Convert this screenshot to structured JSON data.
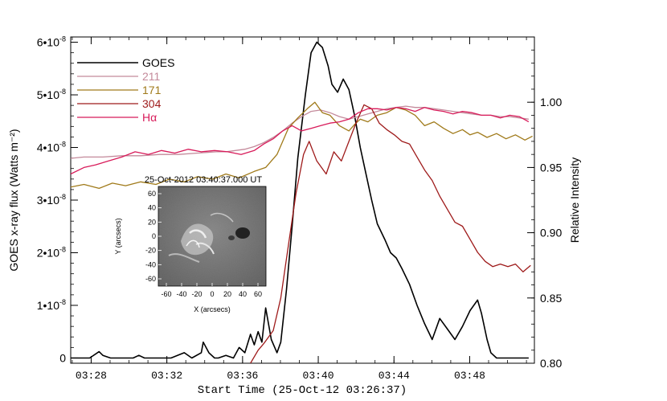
{
  "chart_data": {
    "type": "line",
    "xlabel": "Start Time (25-Oct-12 03:26:37)",
    "ylabel_left": "GOES x-ray flux (Watts m⁻²)",
    "ylabel_right": "Relative Intensity",
    "x_unit": "minutes after 03:26:37",
    "xlim": [
      0.3,
      24.8
    ],
    "ylim_left": [
      -1e-09,
      6.1e-08
    ],
    "ylim_right": [
      0.8,
      1.05
    ],
    "x_ticks": [
      {
        "v": 1.38,
        "label": "03:28"
      },
      {
        "v": 5.38,
        "label": "03:32"
      },
      {
        "v": 9.38,
        "label": "03:36"
      },
      {
        "v": 13.38,
        "label": "03:40"
      },
      {
        "v": 17.38,
        "label": "03:44"
      },
      {
        "v": 21.38,
        "label": "03:48"
      }
    ],
    "y_left_ticks": [
      {
        "v": 0,
        "m": "0",
        "e": ""
      },
      {
        "v": 1e-08,
        "m": "1•10",
        "e": "-8"
      },
      {
        "v": 2e-08,
        "m": "2•10",
        "e": "-8"
      },
      {
        "v": 3e-08,
        "m": "3•10",
        "e": "-8"
      },
      {
        "v": 4e-08,
        "m": "4•10",
        "e": "-8"
      },
      {
        "v": 5e-08,
        "m": "5•10",
        "e": "-8"
      },
      {
        "v": 6e-08,
        "m": "6•10",
        "e": "-8"
      }
    ],
    "y_right_ticks": [
      {
        "v": 0.8,
        "label": "0.80"
      },
      {
        "v": 0.85,
        "label": "0.85"
      },
      {
        "v": 0.9,
        "label": "0.90"
      },
      {
        "v": 0.95,
        "label": "0.95"
      },
      {
        "v": 1.0,
        "label": "1.00"
      }
    ],
    "series": [
      {
        "name": "GOES",
        "axis": "left",
        "color": "#000000",
        "x": [
          0.3,
          1.3,
          1.8,
          2.0,
          2.4,
          3.0,
          3.6,
          3.9,
          4.2,
          4.6,
          4.8,
          5.1,
          5.6,
          6.3,
          6.7,
          7.2,
          7.3,
          7.6,
          7.9,
          8.1,
          8.5,
          8.9,
          9.2,
          9.5,
          9.8,
          10.0,
          10.2,
          10.4,
          10.6,
          10.9,
          11.2,
          11.4,
          11.7,
          12.0,
          12.3,
          12.7,
          13.0,
          13.3,
          13.6,
          13.9,
          14.1,
          14.4,
          14.7,
          15.0,
          15.3,
          15.6,
          15.9,
          16.2,
          16.5,
          16.9,
          17.2,
          17.5,
          17.8,
          18.2,
          18.6,
          19.0,
          19.4,
          19.8,
          20.2,
          20.6,
          21.0,
          21.4,
          21.8,
          22.0,
          22.3,
          22.5,
          22.8,
          23.1,
          23.5,
          24.0,
          24.5
        ],
        "y": [
          0.0,
          0.0,
          1.2e-09,
          5e-10,
          0.0,
          0.0,
          0.0,
          5e-10,
          0.0,
          0.0,
          0.0,
          0.0,
          0.0,
          1e-09,
          0.0,
          1e-09,
          3e-09,
          1e-09,
          0.0,
          0.0,
          5e-10,
          0.0,
          2e-09,
          1e-09,
          4.5e-09,
          2.5e-09,
          5e-09,
          3e-09,
          9.5e-09,
          3.5e-09,
          1e-09,
          3e-09,
          1.3e-08,
          2.5e-08,
          3.8e-08,
          5e-08,
          5.8e-08,
          6e-08,
          5.9e-08,
          5.55e-08,
          5.2e-08,
          5.05e-08,
          5.3e-08,
          5.1e-08,
          4.6e-08,
          4e-08,
          3.5e-08,
          3e-08,
          2.55e-08,
          2.25e-08,
          2e-08,
          1.9e-08,
          1.7e-08,
          1.4e-08,
          1e-08,
          6.5e-09,
          3.5e-09,
          7.5e-09,
          5.5e-09,
          3.5e-09,
          6e-09,
          9e-09,
          1.1e-08,
          8.5e-09,
          3.5e-09,
          1e-09,
          0.0,
          0.0,
          0.0,
          0.0,
          0.0
        ]
      },
      {
        "name": "211",
        "axis": "right",
        "color": "#c48a9b",
        "x": [
          0.3,
          1.0,
          2.0,
          3.0,
          4.0,
          5.0,
          6.0,
          7.0,
          8.0,
          8.5,
          9.0,
          9.5,
          10.0,
          10.5,
          11.0,
          11.5,
          12.0,
          12.5,
          13.0,
          13.5,
          14.0,
          14.5,
          15.0,
          15.5,
          16.0,
          16.5,
          17.0,
          17.5,
          18.0,
          18.5,
          19.0,
          19.5,
          20.0,
          20.5,
          21.0,
          21.5,
          22.0,
          22.5,
          23.0,
          23.5,
          24.0,
          24.5
        ],
        "y": [
          0.957,
          0.958,
          0.958,
          0.959,
          0.959,
          0.96,
          0.96,
          0.961,
          0.962,
          0.962,
          0.963,
          0.964,
          0.966,
          0.969,
          0.973,
          0.978,
          0.984,
          0.989,
          0.993,
          0.994,
          0.992,
          0.989,
          0.987,
          0.989,
          0.991,
          0.993,
          0.995,
          0.996,
          0.997,
          0.996,
          0.996,
          0.995,
          0.994,
          0.993,
          0.992,
          0.991,
          0.99,
          0.99,
          0.989,
          0.989,
          0.988,
          0.987
        ]
      },
      {
        "name": "171",
        "axis": "right",
        "color": "#a07a1a",
        "x": [
          0.3,
          1.0,
          1.8,
          2.5,
          3.2,
          4.0,
          4.8,
          5.5,
          6.3,
          7.0,
          7.8,
          8.5,
          9.2,
          10.0,
          10.6,
          11.2,
          11.8,
          12.3,
          12.8,
          13.2,
          13.6,
          14.0,
          14.5,
          15.0,
          15.3,
          15.6,
          16.0,
          16.5,
          17.0,
          17.5,
          18.0,
          18.5,
          19.0,
          19.5,
          20.0,
          20.5,
          21.0,
          21.4,
          21.8,
          22.3,
          22.8,
          23.3,
          23.8,
          24.3,
          24.7
        ],
        "y": [
          0.935,
          0.937,
          0.934,
          0.938,
          0.936,
          0.939,
          0.937,
          0.941,
          0.939,
          0.943,
          0.941,
          0.945,
          0.942,
          0.947,
          0.95,
          0.96,
          0.98,
          0.988,
          0.995,
          1.0,
          0.992,
          0.99,
          0.982,
          0.978,
          0.983,
          0.987,
          0.985,
          0.99,
          0.992,
          0.996,
          0.994,
          0.99,
          0.982,
          0.985,
          0.98,
          0.976,
          0.979,
          0.975,
          0.977,
          0.973,
          0.976,
          0.972,
          0.975,
          0.971,
          0.974
        ]
      },
      {
        "name": "304",
        "axis": "right",
        "color": "#9e1a1a",
        "x": [
          9.8,
          10.2,
          10.5,
          11.0,
          11.4,
          11.8,
          12.2,
          12.6,
          12.9,
          13.3,
          13.8,
          14.2,
          14.6,
          15.0,
          15.4,
          15.8,
          16.2,
          16.6,
          17.0,
          17.4,
          17.8,
          18.2,
          18.6,
          19.0,
          19.4,
          19.8,
          20.2,
          20.6,
          21.0,
          21.4,
          21.8,
          22.2,
          22.6,
          23.0,
          23.4,
          23.8,
          24.2,
          24.6
        ],
        "y": [
          0.8,
          0.81,
          0.815,
          0.825,
          0.85,
          0.89,
          0.93,
          0.96,
          0.97,
          0.955,
          0.945,
          0.962,
          0.955,
          0.97,
          0.985,
          0.998,
          0.995,
          0.984,
          0.979,
          0.975,
          0.97,
          0.968,
          0.958,
          0.948,
          0.94,
          0.928,
          0.918,
          0.908,
          0.905,
          0.895,
          0.885,
          0.878,
          0.874,
          0.876,
          0.874,
          0.876,
          0.87,
          0.875
        ]
      },
      {
        "name": "Hα",
        "axis": "right",
        "color": "#d81b5a",
        "x": [
          0.3,
          1.0,
          1.6,
          2.3,
          3.0,
          3.7,
          4.4,
          5.1,
          5.8,
          6.5,
          7.2,
          7.9,
          8.6,
          9.3,
          10.0,
          10.5,
          11.0,
          11.5,
          12.0,
          12.5,
          13.0,
          13.5,
          14.0,
          14.5,
          15.0,
          15.5,
          16.0,
          16.5,
          17.0,
          17.5,
          18.0,
          18.5,
          19.0,
          19.5,
          20.0,
          20.5,
          21.0,
          21.5,
          22.0,
          22.5,
          23.0,
          23.5,
          24.0,
          24.5
        ],
        "y": [
          0.945,
          0.95,
          0.952,
          0.955,
          0.958,
          0.962,
          0.96,
          0.963,
          0.961,
          0.964,
          0.962,
          0.963,
          0.962,
          0.96,
          0.963,
          0.968,
          0.972,
          0.978,
          0.982,
          0.978,
          0.98,
          0.982,
          0.984,
          0.985,
          0.987,
          0.992,
          0.995,
          0.995,
          0.994,
          0.996,
          0.995,
          0.993,
          0.996,
          0.994,
          0.993,
          0.991,
          0.993,
          0.992,
          0.99,
          0.99,
          0.988,
          0.99,
          0.989,
          0.985
        ]
      }
    ],
    "legend_position": "top-left",
    "inset": {
      "title": "25-Oct-2012 03:40:37.000 UT",
      "xlabel": "X (arcsecs)",
      "ylabel": "Y (arcsecs)",
      "x_ticks": [
        "-60",
        "-40",
        "-20",
        "0",
        "20",
        "40",
        "60"
      ],
      "y_ticks": [
        "60",
        "40",
        "20",
        "0",
        "-20",
        "-40",
        "-60"
      ],
      "description_colormap": "grayscale"
    }
  }
}
